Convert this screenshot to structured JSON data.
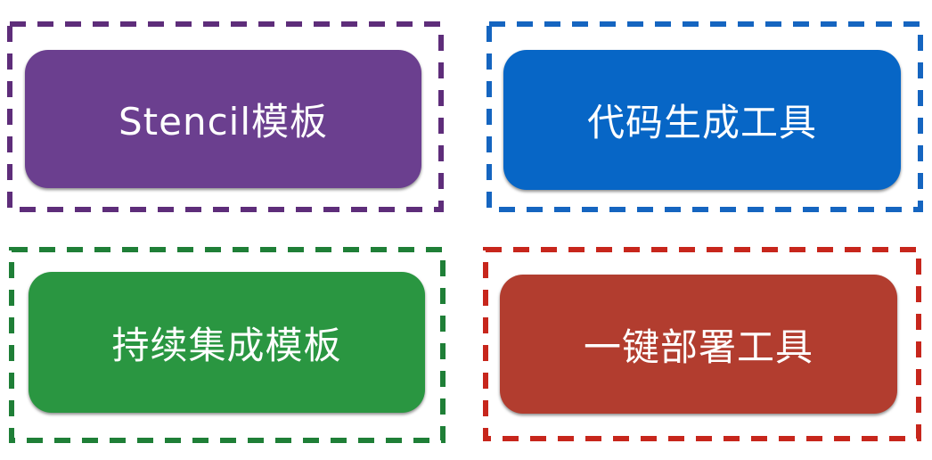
{
  "boxes": [
    {
      "id": "stencil-template",
      "label": "Stencil模板",
      "fill": "#6b3f8f",
      "border": "#5e2d7a"
    },
    {
      "id": "code-generation-tool",
      "label": "代码生成工具",
      "fill": "#0766c6",
      "border": "#1565c0"
    },
    {
      "id": "continuous-integration-template",
      "label": "持续集成模板",
      "fill": "#2a9641",
      "border": "#1f7f37"
    },
    {
      "id": "one-click-deploy-tool",
      "label": "一键部署工具",
      "fill": "#b23d2f",
      "border": "#c7261c"
    }
  ]
}
